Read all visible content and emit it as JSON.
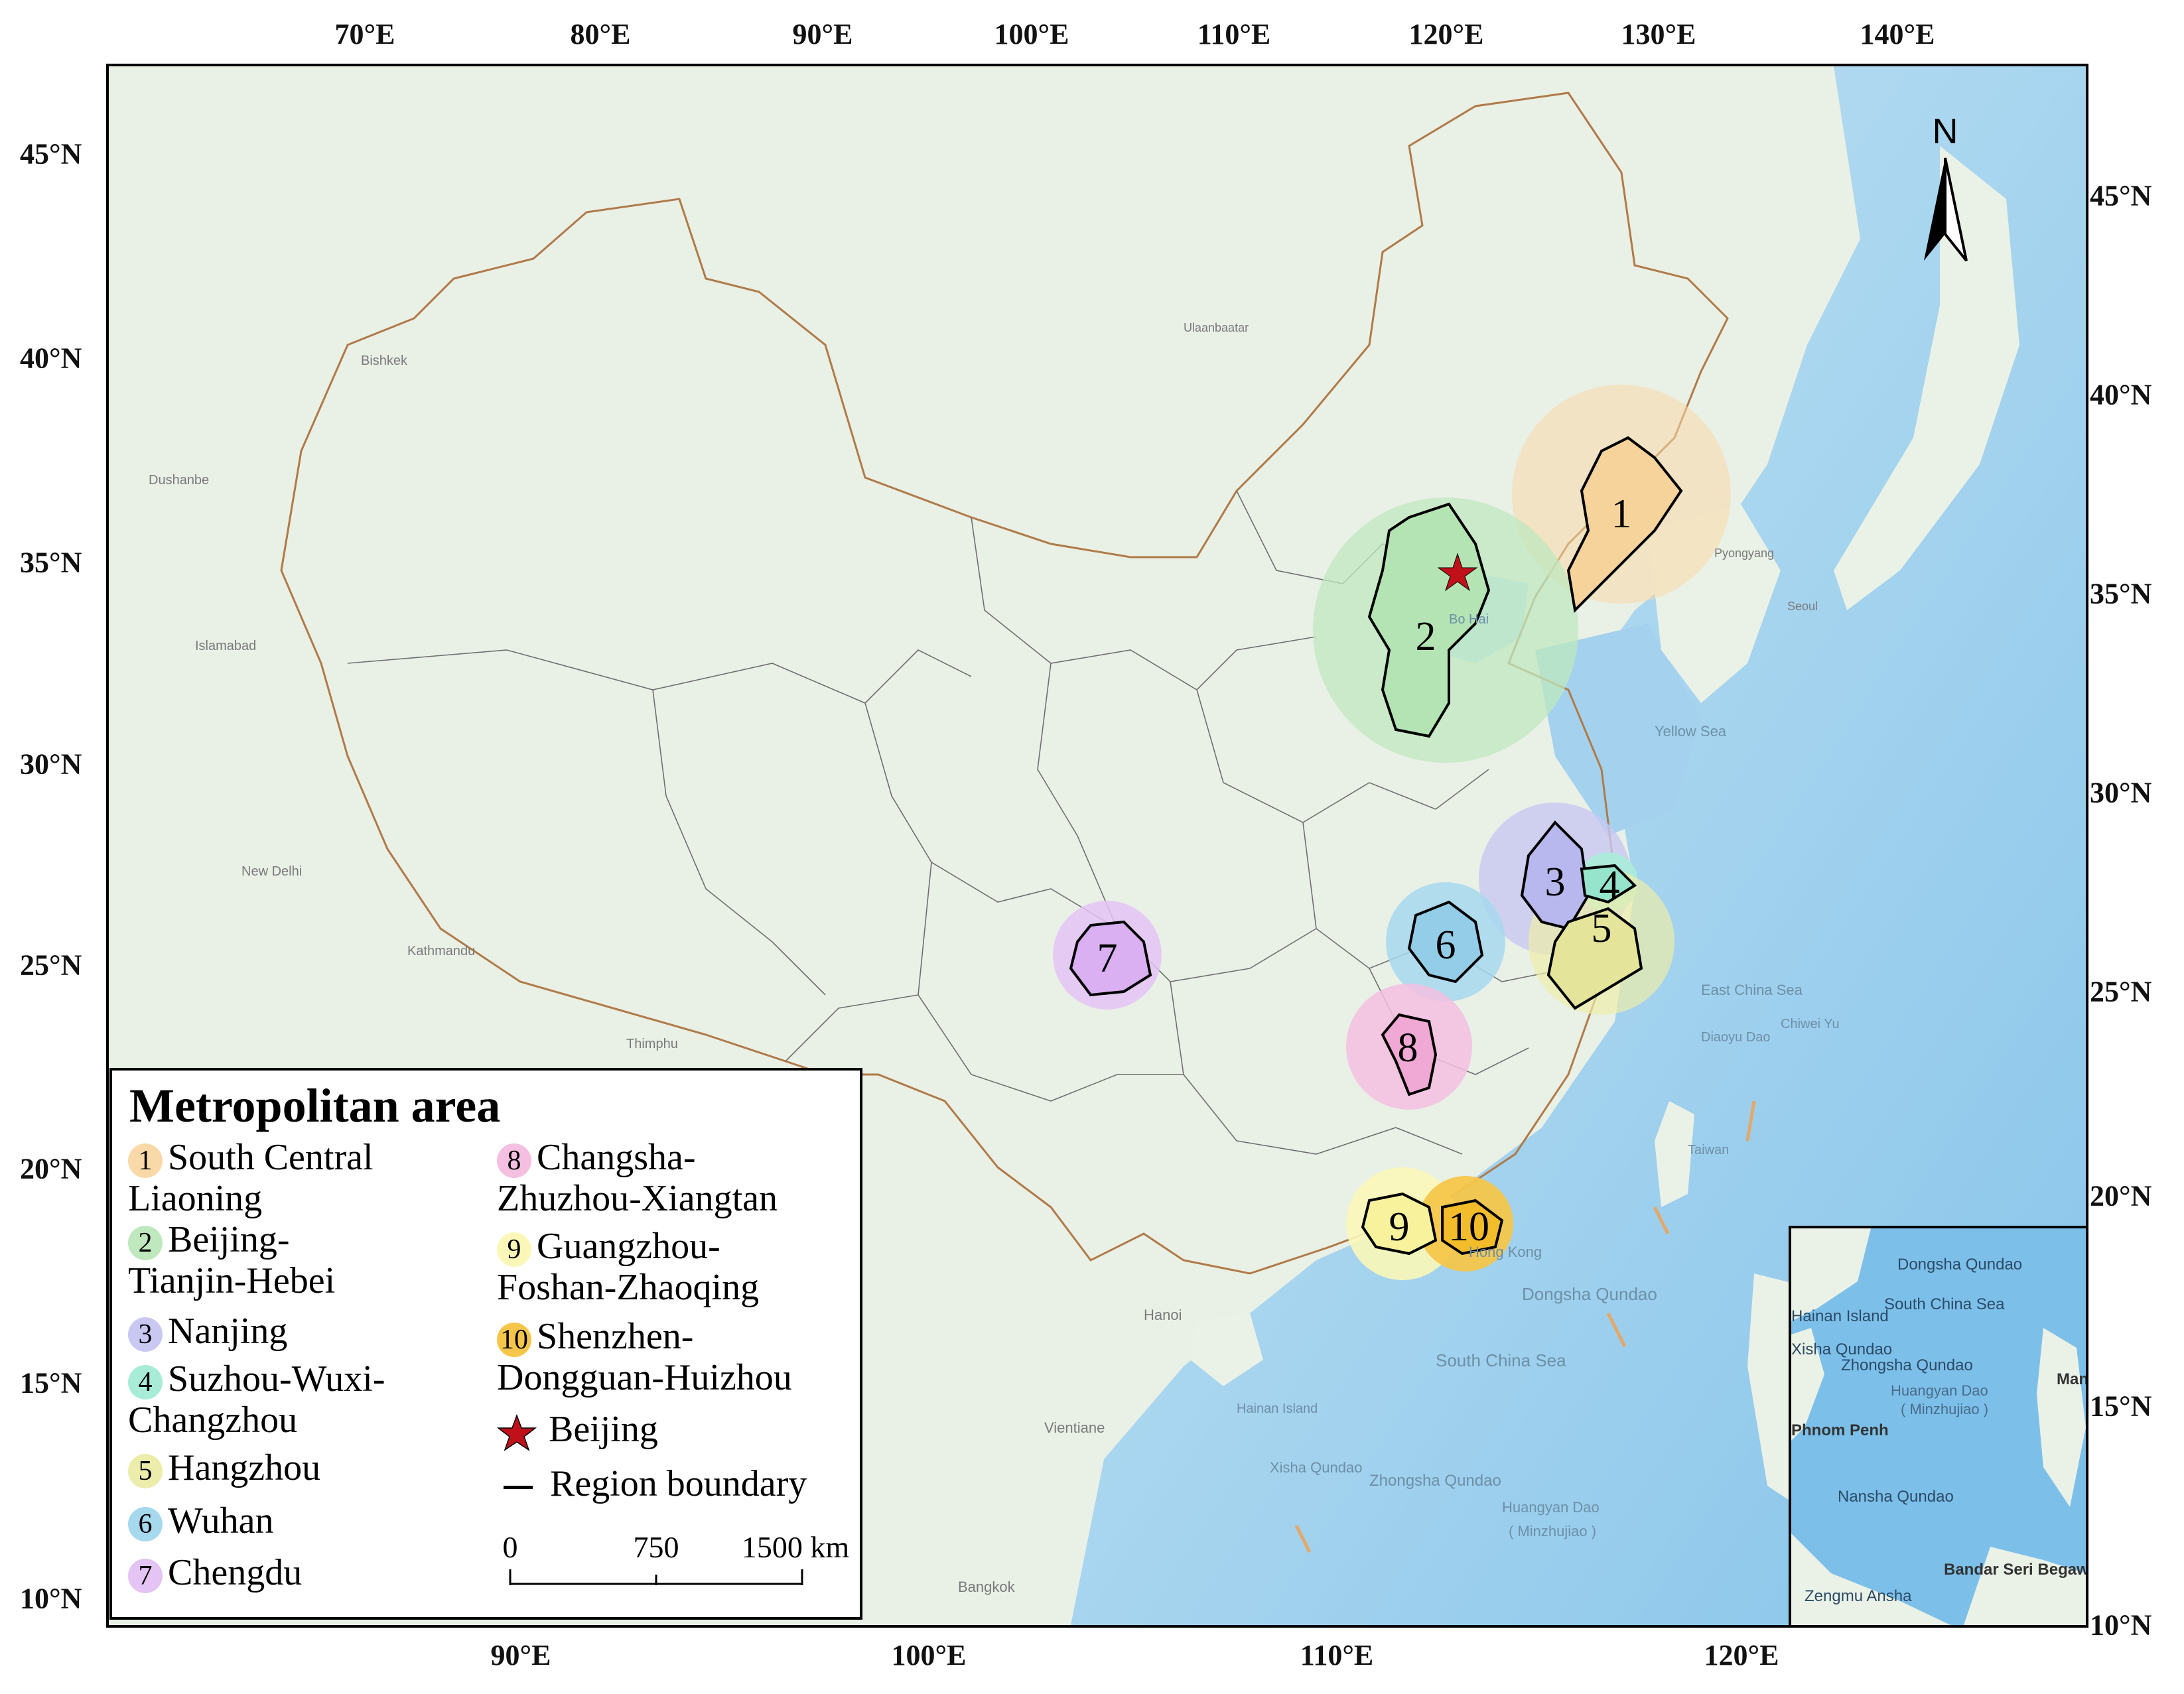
{
  "axes": {
    "top": [
      "70°E",
      "80°E",
      "90°E",
      "100°E",
      "110°E",
      "120°E",
      "130°E",
      "140°E"
    ],
    "bottom": [
      "90°E",
      "100°E",
      "110°E",
      "120°E"
    ],
    "left": [
      "45°N",
      "40°N",
      "35°N",
      "30°N",
      "25°N",
      "20°N",
      "15°N",
      "10°N"
    ],
    "right": [
      "45°N",
      "40°N",
      "35°N",
      "30°N",
      "25°N",
      "20°N",
      "15°N",
      "10°N"
    ]
  },
  "north_label": "N",
  "legend": {
    "title": "Metropolitan area",
    "items": [
      {
        "num": "1",
        "line1": "South Central",
        "line2": "Liaoning",
        "color": "#f9d9a8"
      },
      {
        "num": "2",
        "line1": "Beijing-",
        "line2": "Tianjin-Hebei",
        "color": "#bfe8bf"
      },
      {
        "num": "3",
        "line1": "Nanjing",
        "line2": "",
        "color": "#c8c8f2"
      },
      {
        "num": "4",
        "line1": "Suzhou-Wuxi-",
        "line2": "Changzhou",
        "color": "#a8ecd8"
      },
      {
        "num": "5",
        "line1": "Hangzhou",
        "line2": "",
        "color": "#ecedaa"
      },
      {
        "num": "6",
        "line1": "Wuhan",
        "line2": "",
        "color": "#a6d8ee"
      },
      {
        "num": "7",
        "line1": "Chengdu",
        "line2": "",
        "color": "#e4c4f4"
      },
      {
        "num": "8",
        "line1": "Changsha-",
        "line2": "Zhuzhou-Xiangtan",
        "color": "#f4bfe0"
      },
      {
        "num": "9",
        "line1": "Guangzhou-",
        "line2": "Foshan-Zhaoqing",
        "color": "#fbf7b8"
      },
      {
        "num": "10",
        "line1": "Shenzhen-",
        "line2": "Dongguan-Huizhou",
        "color": "#f6c64a"
      }
    ],
    "capital": "Beijing",
    "boundary": "Region boundary",
    "scale": {
      "ticks": [
        "0",
        "750",
        "1500 km"
      ]
    }
  },
  "map_labels": {
    "yellow_sea": "Yellow Sea",
    "east_china_sea": "East China Sea",
    "bo_hai": "Bo Hai",
    "dongsha": "Dongsha Qundao",
    "south_china_sea": "South China Sea",
    "zhongsha": "Zhongsha Qundao",
    "huangyan": "Huangyan Dao",
    "minzhujiao": "( Minzhujiao )",
    "xisha": "Xisha Qundao",
    "hainan": "Hainan Island",
    "hong_kong": "Hong Kong",
    "taiwan": "Taiwan",
    "diaoyu": "Diaoyu Dao",
    "chiwei": "Chiwei Yu",
    "hanoi": "Hanoi",
    "vientiane": "Vientiane",
    "bangkok": "Bangkok",
    "new_delhi": "New Delhi",
    "kathmandu": "Kathmandu",
    "thimphu": "Thimphu",
    "islamabad": "Islamabad",
    "dushanbe": "Dushanbe",
    "bishkek": "Bishkek",
    "ulaanbaatar": "Ulaanbaatar",
    "pyongyang": "Pyongyang",
    "seoul": "Seoul"
  },
  "inset_labels": {
    "dongsha": "Dongsha Qundao",
    "south_china_sea": "South China Sea",
    "hainan": "Hainan Island",
    "xisha": "Xisha Qundao",
    "zhongsha": "Zhongsha Qundao",
    "huangyan": "Huangyan Dao",
    "minzhujiao": "( Minzhujiao )",
    "nansha": "Nansha Qundao",
    "phnom_penh": "Phnom Penh",
    "bandar": "Bandar Seri Begawan",
    "zengmu": "Zengmu Ansha",
    "manila": "Manila"
  },
  "colors": {
    "land": "#e9f0e6",
    "sea": "#a9d5ef",
    "deep_sea": "#7cc0ea",
    "china_border": "#b07a48",
    "capital_star": "#c0101a"
  }
}
